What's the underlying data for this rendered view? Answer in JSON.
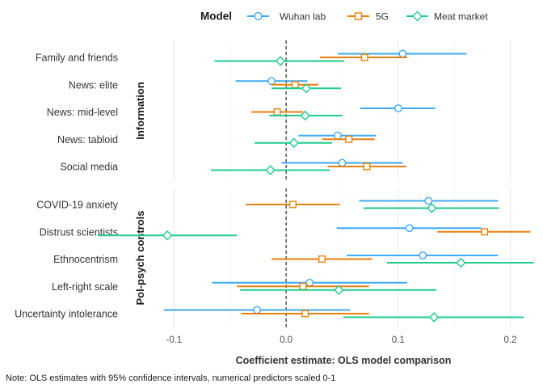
{
  "chart_data": {
    "type": "scatter",
    "xlabel": "Coefficient estimate: OLS model comparison",
    "caption": "Note: OLS estimates with 95% confidence intervals, numerical predictors scaled 0-1",
    "legend_title": "Model",
    "legend_position": "top",
    "xlim": [
      -0.145,
      0.222
    ],
    "xticks": [
      -0.1,
      0.0,
      0.1,
      0.2
    ],
    "xtick_labels": [
      "-0.1",
      "0.0",
      "0.1",
      "0.2"
    ],
    "reference_line": 0,
    "grid": true,
    "series": [
      {
        "name": "Wuhan lab",
        "color": "#3FA9F5",
        "marker": "circle"
      },
      {
        "name": "5G",
        "color": "#E8800C",
        "marker": "square"
      },
      {
        "name": "Meat market",
        "color": "#1FCB8C",
        "marker": "diamond"
      }
    ],
    "panels": [
      {
        "label": "Information",
        "terms": [
          {
            "term": "Family and friends",
            "estimates": [
              {
                "est": 0.104,
                "lo": 0.046,
                "hi": 0.161
              },
              {
                "est": 0.07,
                "lo": 0.03,
                "hi": 0.108
              },
              {
                "est": -0.005,
                "lo": -0.064,
                "hi": 0.052
              }
            ]
          },
          {
            "term": "News: elite",
            "estimates": [
              {
                "est": -0.013,
                "lo": -0.045,
                "hi": 0.019
              },
              {
                "est": 0.008,
                "lo": -0.013,
                "hi": 0.029
              },
              {
                "est": 0.018,
                "lo": -0.013,
                "hi": 0.049
              }
            ]
          },
          {
            "term": "News: mid-level",
            "estimates": [
              {
                "est": 0.1,
                "lo": 0.066,
                "hi": 0.133
              },
              {
                "est": -0.008,
                "lo": -0.031,
                "hi": 0.015
              },
              {
                "est": 0.017,
                "lo": -0.015,
                "hi": 0.05
              }
            ]
          },
          {
            "term": "News: tabloid",
            "estimates": [
              {
                "est": 0.046,
                "lo": 0.011,
                "hi": 0.08
              },
              {
                "est": 0.056,
                "lo": 0.032,
                "hi": 0.079
              },
              {
                "est": 0.007,
                "lo": -0.028,
                "hi": 0.041
              }
            ]
          },
          {
            "term": "Social media",
            "estimates": [
              {
                "est": 0.05,
                "lo": -0.004,
                "hi": 0.104
              },
              {
                "est": 0.072,
                "lo": 0.037,
                "hi": 0.107
              },
              {
                "est": -0.014,
                "lo": -0.067,
                "hi": 0.039
              }
            ]
          }
        ]
      },
      {
        "label": "Pol-psych controls",
        "terms": [
          {
            "term": "COVID-19 anxiety",
            "estimates": [
              {
                "est": 0.127,
                "lo": 0.065,
                "hi": 0.189
              },
              {
                "est": 0.006,
                "lo": -0.036,
                "hi": 0.048
              },
              {
                "est": 0.13,
                "lo": 0.069,
                "hi": 0.19
              }
            ]
          },
          {
            "term": "Distrust scientists",
            "estimates": [
              {
                "est": 0.11,
                "lo": 0.045,
                "hi": 0.174
              },
              {
                "est": 0.177,
                "lo": 0.135,
                "hi": 0.218
              },
              {
                "est": -0.106,
                "lo": -0.168,
                "hi": -0.044
              }
            ]
          },
          {
            "term": "Ethnocentrism",
            "estimates": [
              {
                "est": 0.122,
                "lo": 0.054,
                "hi": 0.189
              },
              {
                "est": 0.032,
                "lo": -0.013,
                "hi": 0.077
              },
              {
                "est": 0.156,
                "lo": 0.09,
                "hi": 0.221
              }
            ]
          },
          {
            "term": "Left-right scale",
            "estimates": [
              {
                "est": 0.021,
                "lo": -0.066,
                "hi": 0.108
              },
              {
                "est": 0.015,
                "lo": -0.044,
                "hi": 0.074
              },
              {
                "est": 0.047,
                "lo": -0.041,
                "hi": 0.134
              }
            ]
          },
          {
            "term": "Uncertainty intolerance",
            "estimates": [
              {
                "est": -0.026,
                "lo": -0.109,
                "hi": 0.057
              },
              {
                "est": 0.017,
                "lo": -0.04,
                "hi": 0.074
              },
              {
                "est": 0.132,
                "lo": 0.051,
                "hi": 0.212
              }
            ]
          }
        ]
      }
    ]
  }
}
